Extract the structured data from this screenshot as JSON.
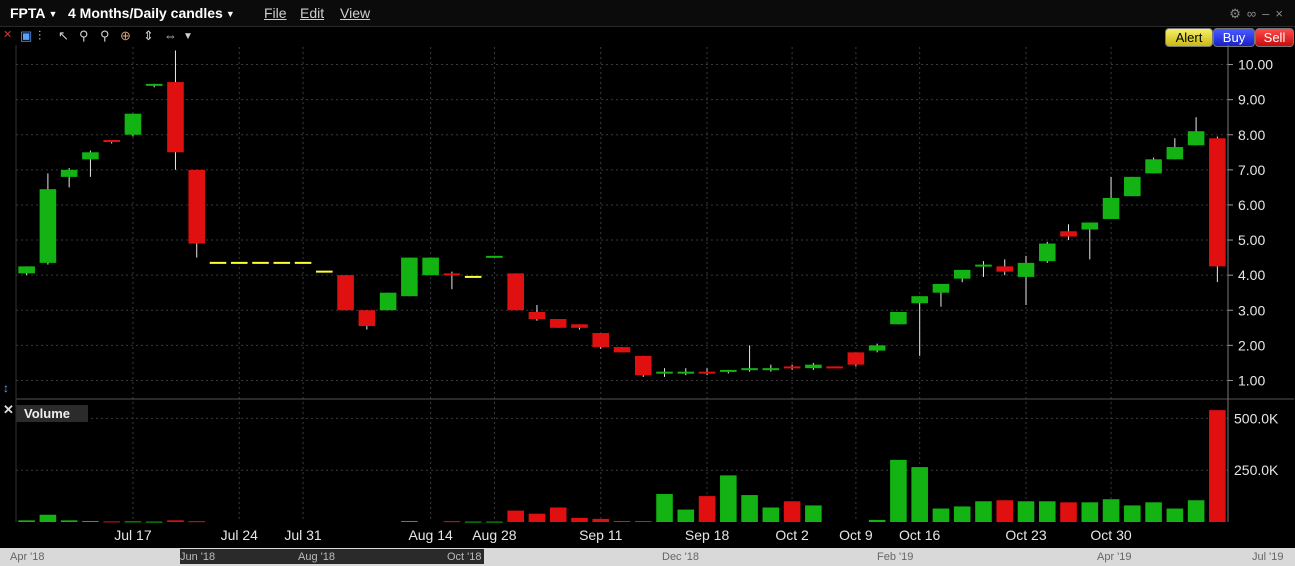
{
  "header": {
    "symbol": "FPTA",
    "period": "4 Months/Daily candles",
    "menu": [
      "File",
      "Edit",
      "View"
    ]
  },
  "toolbar": {
    "alert_label": "Alert",
    "buy_label": "Buy",
    "sell_label": "Sell"
  },
  "volume_panel": {
    "label": "Volume"
  },
  "scrollbar": {
    "labels": [
      "Apr '18",
      "Jun '18",
      "Aug '18",
      "Oct '18",
      "Dec '18",
      "Feb '19",
      "Apr '19",
      "Jul '19"
    ]
  },
  "colors": {
    "up": "#12b312",
    "down": "#e01010",
    "flat": "#ffff33",
    "grid": "#3a3a3a"
  },
  "chart_data": {
    "type": "candlestick",
    "price_axis": {
      "ticks": [
        "1.00",
        "2.00",
        "3.00",
        "4.00",
        "5.00",
        "6.00",
        "7.00",
        "8.00",
        "9.00",
        "10.00"
      ],
      "ylim": [
        0.5,
        10.5
      ]
    },
    "volume_axis": {
      "ticks": [
        "250.0K",
        "500.0K"
      ],
      "ylim": [
        0,
        560000
      ]
    },
    "x_tick_labels": [
      {
        "label": "Jul 17",
        "i": 5
      },
      {
        "label": "Jul 24",
        "i": 10
      },
      {
        "label": "Jul 31",
        "i": 13
      },
      {
        "label": "Aug 14",
        "i": 19
      },
      {
        "label": "Aug 28",
        "i": 22
      },
      {
        "label": "Sep 11",
        "i": 27
      },
      {
        "label": "Sep 18",
        "i": 32
      },
      {
        "label": "Oct 2",
        "i": 36
      },
      {
        "label": "Oct 9",
        "i": 39
      },
      {
        "label": "Oct 16",
        "i": 42
      },
      {
        "label": "Oct 23",
        "i": 47
      },
      {
        "label": "Oct 30",
        "i": 51
      }
    ],
    "candles": [
      {
        "o": 4.05,
        "h": 4.25,
        "l": 4.0,
        "c": 4.25,
        "v": 8000
      },
      {
        "o": 4.35,
        "h": 6.9,
        "l": 4.3,
        "c": 6.45,
        "v": 35000
      },
      {
        "o": 6.8,
        "h": 7.05,
        "l": 6.5,
        "c": 7.0,
        "v": 8000
      },
      {
        "o": 7.3,
        "h": 7.55,
        "l": 6.8,
        "c": 7.5,
        "v": 5000
      },
      {
        "o": 7.85,
        "h": 7.85,
        "l": 7.75,
        "c": 7.8,
        "v": 3000
      },
      {
        "o": 8.0,
        "h": 8.6,
        "l": 7.95,
        "c": 8.6,
        "v": 3000
      },
      {
        "o": 9.4,
        "h": 9.45,
        "l": 9.35,
        "c": 9.45,
        "v": 2000
      },
      {
        "o": 9.5,
        "h": 10.4,
        "l": 7.0,
        "c": 7.5,
        "v": 8000
      },
      {
        "o": 7.0,
        "h": 7.0,
        "l": 4.5,
        "c": 4.9,
        "v": 4000
      },
      {
        "o": 4.35,
        "h": 4.35,
        "l": 4.35,
        "c": 4.35,
        "v": 0
      },
      {
        "o": 4.35,
        "h": 4.35,
        "l": 4.35,
        "c": 4.35,
        "v": 0
      },
      {
        "o": 4.35,
        "h": 4.35,
        "l": 4.35,
        "c": 4.35,
        "v": 0
      },
      {
        "o": 4.35,
        "h": 4.35,
        "l": 4.35,
        "c": 4.35,
        "v": 0
      },
      {
        "o": 4.35,
        "h": 4.35,
        "l": 4.35,
        "c": 4.35,
        "v": 0
      },
      {
        "o": 4.1,
        "h": 4.1,
        "l": 4.1,
        "c": 4.1,
        "v": 0
      },
      {
        "o": 4.0,
        "h": 4.0,
        "l": 3.0,
        "c": 3.0,
        "v": 0
      },
      {
        "o": 3.0,
        "h": 3.0,
        "l": 2.45,
        "c": 2.55,
        "v": 0
      },
      {
        "o": 3.0,
        "h": 3.5,
        "l": 3.0,
        "c": 3.5,
        "v": 0
      },
      {
        "o": 3.4,
        "h": 4.5,
        "l": 3.4,
        "c": 4.5,
        "v": 5000
      },
      {
        "o": 4.0,
        "h": 4.5,
        "l": 4.0,
        "c": 4.5,
        "v": 0
      },
      {
        "o": 4.05,
        "h": 4.1,
        "l": 3.6,
        "c": 4.0,
        "v": 4000
      },
      {
        "o": 3.95,
        "h": 3.95,
        "l": 3.95,
        "c": 3.95,
        "v": 2000
      },
      {
        "o": 4.5,
        "h": 4.55,
        "l": 4.5,
        "c": 4.55,
        "v": 2000
      },
      {
        "o": 4.05,
        "h": 4.05,
        "l": 3.0,
        "c": 3.0,
        "v": 55000
      },
      {
        "o": 2.95,
        "h": 3.15,
        "l": 2.7,
        "c": 2.75,
        "v": 40000
      },
      {
        "o": 2.75,
        "h": 2.75,
        "l": 2.5,
        "c": 2.5,
        "v": 70000
      },
      {
        "o": 2.6,
        "h": 2.6,
        "l": 2.45,
        "c": 2.5,
        "v": 20000
      },
      {
        "o": 2.35,
        "h": 2.35,
        "l": 1.9,
        "c": 1.95,
        "v": 15000
      },
      {
        "o": 1.95,
        "h": 1.95,
        "l": 1.8,
        "c": 1.8,
        "v": 5000
      },
      {
        "o": 1.7,
        "h": 1.7,
        "l": 1.1,
        "c": 1.15,
        "v": 5000
      },
      {
        "o": 1.2,
        "h": 1.35,
        "l": 1.1,
        "c": 1.25,
        "v": 135000
      },
      {
        "o": 1.2,
        "h": 1.35,
        "l": 1.15,
        "c": 1.25,
        "v": 60000
      },
      {
        "o": 1.25,
        "h": 1.35,
        "l": 1.15,
        "c": 1.2,
        "v": 125000
      },
      {
        "o": 1.25,
        "h": 1.3,
        "l": 1.2,
        "c": 1.3,
        "v": 225000
      },
      {
        "o": 1.3,
        "h": 2.0,
        "l": 1.25,
        "c": 1.35,
        "v": 130000
      },
      {
        "o": 1.3,
        "h": 1.45,
        "l": 1.25,
        "c": 1.35,
        "v": 70000
      },
      {
        "o": 1.4,
        "h": 1.45,
        "l": 1.3,
        "c": 1.35,
        "v": 100000
      },
      {
        "o": 1.35,
        "h": 1.5,
        "l": 1.3,
        "c": 1.45,
        "v": 80000
      },
      {
        "o": 1.4,
        "h": 1.4,
        "l": 1.35,
        "c": 1.35,
        "v": 0
      },
      {
        "o": 1.8,
        "h": 1.8,
        "l": 1.4,
        "c": 1.45,
        "v": 0
      },
      {
        "o": 1.85,
        "h": 2.05,
        "l": 1.8,
        "c": 2.0,
        "v": 10000
      },
      {
        "o": 2.6,
        "h": 2.95,
        "l": 2.6,
        "c": 2.95,
        "v": 300000
      },
      {
        "o": 3.2,
        "h": 3.4,
        "l": 1.7,
        "c": 3.4,
        "v": 265000
      },
      {
        "o": 3.5,
        "h": 3.75,
        "l": 3.1,
        "c": 3.75,
        "v": 65000
      },
      {
        "o": 3.9,
        "h": 4.15,
        "l": 3.8,
        "c": 4.15,
        "v": 75000
      },
      {
        "o": 4.25,
        "h": 4.4,
        "l": 3.95,
        "c": 4.3,
        "v": 100000
      },
      {
        "o": 4.25,
        "h": 4.45,
        "l": 4.0,
        "c": 4.1,
        "v": 105000
      },
      {
        "o": 3.95,
        "h": 4.55,
        "l": 3.15,
        "c": 4.35,
        "v": 100000
      },
      {
        "o": 4.4,
        "h": 4.95,
        "l": 4.35,
        "c": 4.9,
        "v": 100000
      },
      {
        "o": 5.25,
        "h": 5.45,
        "l": 5.0,
        "c": 5.1,
        "v": 95000
      },
      {
        "o": 5.3,
        "h": 5.5,
        "l": 4.45,
        "c": 5.5,
        "v": 95000
      },
      {
        "o": 5.6,
        "h": 6.8,
        "l": 5.6,
        "c": 6.2,
        "v": 110000
      },
      {
        "o": 6.25,
        "h": 6.8,
        "l": 6.25,
        "c": 6.8,
        "v": 80000
      },
      {
        "o": 6.9,
        "h": 7.35,
        "l": 6.9,
        "c": 7.3,
        "v": 95000
      },
      {
        "o": 7.3,
        "h": 7.9,
        "l": 7.3,
        "c": 7.65,
        "v": 65000
      },
      {
        "o": 7.7,
        "h": 8.5,
        "l": 7.7,
        "c": 8.1,
        "v": 105000
      },
      {
        "o": 7.9,
        "h": 7.95,
        "l": 3.8,
        "c": 4.25,
        "v": 540000
      }
    ]
  }
}
